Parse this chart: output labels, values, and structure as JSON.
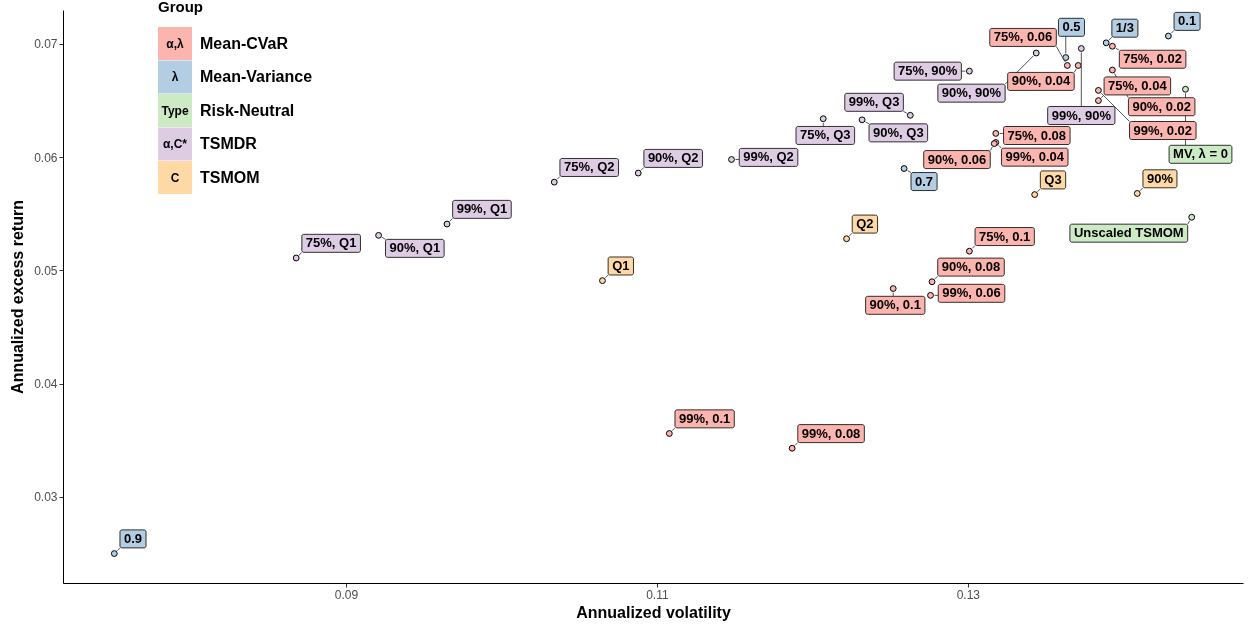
{
  "chart_data": {
    "type": "scatter",
    "xlabel": "Annualized volatility",
    "ylabel": "Annualized excess return",
    "legend_title": "Group",
    "legend": "top left",
    "grid": false,
    "marker": "circle",
    "xlim": [
      0.0718,
      0.1477
    ],
    "ylim": [
      0.0224,
      0.073
    ],
    "xticks": [
      0.09,
      0.11,
      0.13
    ],
    "yticks": [
      0.03,
      0.04,
      0.05,
      0.06,
      0.07
    ],
    "annotations": [
      "α,λ",
      "λ",
      "Type",
      "α,C*",
      "C",
      {
        "text": "75%, 0.02",
        "x": 0.1393,
        "y": 0.0698
      },
      {
        "text": "90%, 0.04",
        "x": 0.1371,
        "y": 0.0681
      },
      {
        "text": "75%, 0.06",
        "x": 0.1364,
        "y": 0.0681
      },
      {
        "text": "90%, 0.02",
        "x": 0.1393,
        "y": 0.0677
      },
      {
        "text": "99%, 0.02",
        "x": 0.1384,
        "y": 0.0659
      },
      {
        "text": "75%, 0.04",
        "x": 0.1384,
        "y": 0.065
      },
      {
        "text": "75%, 0.08",
        "x": 0.1318,
        "y": 0.0621
      },
      {
        "text": "99%, 0.04",
        "x": 0.1318,
        "y": 0.0613
      },
      {
        "text": "90%, 0.06",
        "x": 0.1317,
        "y": 0.0612
      },
      {
        "text": "75%, 0.1",
        "x": 0.1301,
        "y": 0.0517
      },
      {
        "text": "90%, 0.08",
        "x": 0.1277,
        "y": 0.049
      },
      {
        "text": "99%, 0.06",
        "x": 0.1276,
        "y": 0.0478
      },
      {
        "text": "90%, 0.1",
        "x": 0.1252,
        "y": 0.0484
      },
      {
        "text": "99%, 0.1",
        "x": 0.1108,
        "y": 0.0356
      },
      {
        "text": "99%, 0.08",
        "x": 0.1187,
        "y": 0.0343
      },
      {
        "text": "0.1",
        "x": 0.1429,
        "y": 0.0707
      },
      {
        "text": "1/3",
        "x": 0.1389,
        "y": 0.0701
      },
      {
        "text": "0.5",
        "x": 0.1363,
        "y": 0.0688
      },
      {
        "text": "0.7",
        "x": 0.1259,
        "y": 0.059
      },
      {
        "text": "0.9",
        "x": 0.0751,
        "y": 0.025
      },
      {
        "text": "MV, λ = 0",
        "x": 0.144,
        "y": 0.066
      },
      {
        "text": "Unscaled TSMOM",
        "x": 0.1444,
        "y": 0.0547
      },
      {
        "text": "75%, Q1",
        "x": 0.0868,
        "y": 0.0511
      },
      {
        "text": "90%, Q1",
        "x": 0.0921,
        "y": 0.0531
      },
      {
        "text": "99%, Q1",
        "x": 0.0965,
        "y": 0.0541
      },
      {
        "text": "75%, Q2",
        "x": 0.1034,
        "y": 0.0578
      },
      {
        "text": "90%, Q2",
        "x": 0.1088,
        "y": 0.0586
      },
      {
        "text": "99%, Q2",
        "x": 0.1148,
        "y": 0.0598
      },
      {
        "text": "75%, Q3",
        "x": 0.1207,
        "y": 0.0634
      },
      {
        "text": "90%, Q3",
        "x": 0.1232,
        "y": 0.0633
      },
      {
        "text": "99%, Q3",
        "x": 0.1263,
        "y": 0.0637
      },
      {
        "text": "75%, 90%",
        "x": 0.1301,
        "y": 0.0676
      },
      {
        "text": "90%, 90%",
        "x": 0.1344,
        "y": 0.0692
      },
      {
        "text": "99%, 90%",
        "x": 0.1373,
        "y": 0.0696
      },
      {
        "text": "Q1",
        "x": 0.1065,
        "y": 0.0491
      },
      {
        "text": "Q2",
        "x": 0.1222,
        "y": 0.0528
      },
      {
        "text": "Q3",
        "x": 0.1343,
        "y": 0.0567
      },
      {
        "text": "90%",
        "x": 0.1409,
        "y": 0.0568
      }
    ],
    "series": [
      {
        "name": "Mean-CVaR",
        "color": "#fbb4ae",
        "x": [
          0.1393,
          0.1371,
          0.1364,
          0.1393,
          0.1384,
          0.1384,
          0.1318,
          0.1318,
          0.1317,
          0.1301,
          0.1277,
          0.1276,
          0.1252,
          0.1108,
          0.1187
        ],
        "values": [
          0.0698,
          0.0681,
          0.0681,
          0.0677,
          0.0659,
          0.065,
          0.0621,
          0.0613,
          0.0612,
          0.0517,
          0.049,
          0.0478,
          0.0484,
          0.0356,
          0.0343
        ]
      },
      {
        "name": "Mean-Variance",
        "color": "#b3cde3",
        "x": [
          0.1429,
          0.1389,
          0.1363,
          0.1259,
          0.0751
        ],
        "values": [
          0.0707,
          0.0701,
          0.0688,
          0.059,
          0.025
        ]
      },
      {
        "name": "Risk-Neutral",
        "color": "#ccebc5",
        "x": [
          0.144,
          0.1444
        ],
        "values": [
          0.066,
          0.0547
        ]
      },
      {
        "name": "TSMDR",
        "color": "#decbe4",
        "x": [
          0.0868,
          0.0921,
          0.0965,
          0.1034,
          0.1088,
          0.1148,
          0.1207,
          0.1232,
          0.1263,
          0.1301,
          0.1344,
          0.1373
        ],
        "values": [
          0.0511,
          0.0531,
          0.0541,
          0.0578,
          0.0586,
          0.0598,
          0.0634,
          0.0633,
          0.0637,
          0.0676,
          0.0692,
          0.0696
        ]
      },
      {
        "name": "TSMOM",
        "color": "#fed9a6",
        "x": [
          0.1065,
          0.1222,
          0.1343,
          0.1409
        ],
        "values": [
          0.0491,
          0.0528,
          0.0567,
          0.0568
        ]
      }
    ]
  }
}
